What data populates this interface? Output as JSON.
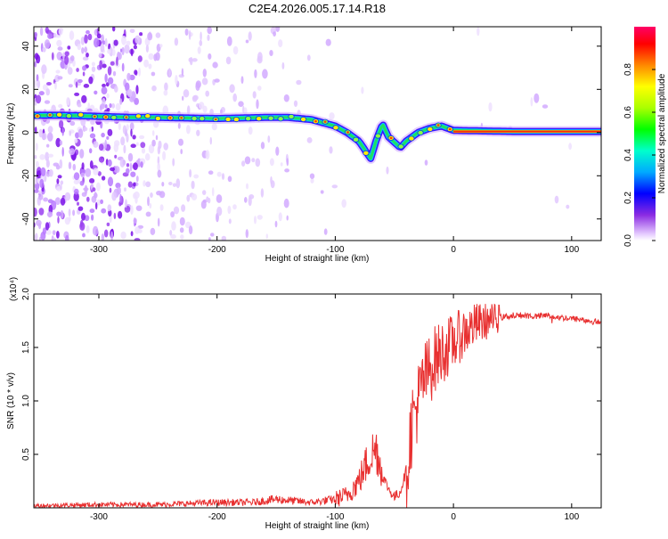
{
  "title": "C2E4.2026.005.17.14.R18",
  "colors": {
    "snr_line": "#e83030",
    "ridge_core": "#ff2a10",
    "axis": "#000000"
  },
  "chart_data": [
    {
      "type": "heatmap",
      "title": "C2E4.2026.005.17.14.R18",
      "xlabel": "Height of straight line (km)",
      "ylabel": "Frequency (Hz)",
      "xlim": [
        -355,
        125
      ],
      "ylim": [
        -50,
        49
      ],
      "x_ticks": [
        -300,
        -200,
        -100,
        0,
        100
      ],
      "y_ticks": [
        -40,
        -20,
        0,
        20,
        40
      ],
      "colorbar": {
        "label": "Normalized spectral amplitude",
        "range": [
          0.0,
          1.0
        ],
        "ticks": [
          0.0,
          0.2,
          0.4,
          0.6,
          0.8
        ]
      },
      "ridge": {
        "description": "dominant frequency track",
        "points": [
          [
            -355,
            8
          ],
          [
            -330,
            8
          ],
          [
            -300,
            7.5
          ],
          [
            -270,
            7
          ],
          [
            -250,
            7
          ],
          [
            -200,
            6.5
          ],
          [
            -160,
            7
          ],
          [
            -140,
            7
          ],
          [
            -120,
            6
          ],
          [
            -100,
            3
          ],
          [
            -90,
            0
          ],
          [
            -80,
            -4
          ],
          [
            -75,
            -8
          ],
          [
            -70,
            -12
          ],
          [
            -65,
            -3
          ],
          [
            -60,
            4
          ],
          [
            -55,
            -2
          ],
          [
            -45,
            -7
          ],
          [
            -40,
            -4
          ],
          [
            -30,
            0
          ],
          [
            -20,
            2
          ],
          [
            -10,
            3
          ],
          [
            0,
            1
          ],
          [
            50,
            0.5
          ],
          [
            125,
            0.5
          ]
        ]
      }
    },
    {
      "type": "line",
      "xlabel": "Height of straight line (km)",
      "ylabel": "SNR (10 * v/v)",
      "y_multiplier": "(x10⁴)",
      "xlim": [
        -355,
        125
      ],
      "ylim": [
        0,
        2.0
      ],
      "x_ticks": [
        -300,
        -200,
        -100,
        0,
        100
      ],
      "y_ticks": [
        0.5,
        1.0,
        1.5,
        2.0
      ],
      "series": [
        {
          "name": "SNR",
          "points": [
            [
              -355,
              0.02
            ],
            [
              -300,
              0.03
            ],
            [
              -250,
              0.03
            ],
            [
              -200,
              0.05
            ],
            [
              -170,
              0.05
            ],
            [
              -150,
              0.08
            ],
            [
              -120,
              0.05
            ],
            [
              -100,
              0.08
            ],
            [
              -90,
              0.12
            ],
            [
              -80,
              0.25
            ],
            [
              -70,
              0.5
            ],
            [
              -65,
              0.55
            ],
            [
              -60,
              0.3
            ],
            [
              -55,
              0.18
            ],
            [
              -50,
              0.1
            ],
            [
              -45,
              0.15
            ],
            [
              -40,
              0.35
            ],
            [
              -35,
              0.8
            ],
            [
              -30,
              1.0
            ],
            [
              -25,
              1.2
            ],
            [
              -20,
              1.3
            ],
            [
              -15,
              1.4
            ],
            [
              -10,
              1.45
            ],
            [
              -5,
              1.5
            ],
            [
              0,
              1.55
            ],
            [
              10,
              1.65
            ],
            [
              20,
              1.72
            ],
            [
              30,
              1.75
            ],
            [
              40,
              1.78
            ],
            [
              50,
              1.8
            ],
            [
              60,
              1.8
            ],
            [
              70,
              1.79
            ],
            [
              80,
              1.8
            ],
            [
              90,
              1.78
            ],
            [
              100,
              1.77
            ],
            [
              110,
              1.76
            ],
            [
              125,
              1.73
            ]
          ]
        }
      ]
    }
  ]
}
